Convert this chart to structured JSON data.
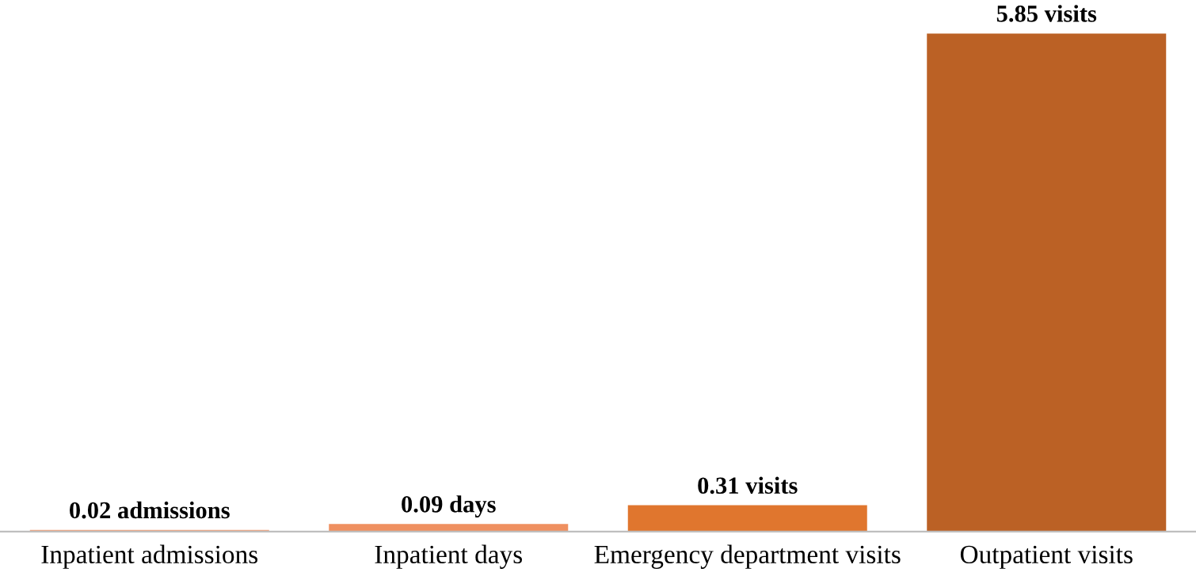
{
  "chart_data": {
    "type": "bar",
    "categories": [
      "Inpatient admissions",
      "Inpatient days",
      "Emergency department visits",
      "Outpatient visits"
    ],
    "values": [
      0.02,
      0.09,
      0.31,
      5.85
    ],
    "colors": [
      "#f2a07a",
      "#ef9060",
      "#e0762e",
      "#bb6125"
    ],
    "value_labels": [
      "0.02 admissions",
      "0.09 days",
      "0.31 visits",
      "5.85 visits"
    ],
    "grid": false,
    "legend": false
  }
}
